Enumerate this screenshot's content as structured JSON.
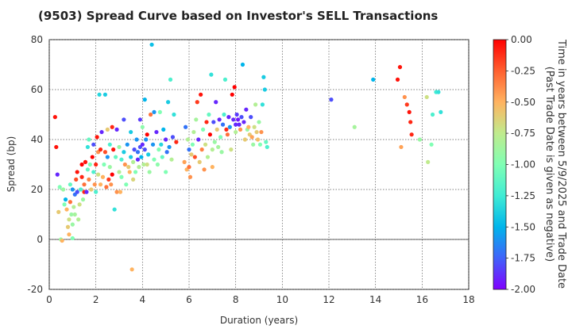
{
  "chart_data": {
    "type": "scatter",
    "title": "(9503)   Spread Curve based on Investor's SELL Transactions",
    "xlabel": "Duration (years)",
    "ylabel": "Spread (bp)",
    "xlim": [
      0,
      18
    ],
    "ylim": [
      -20,
      80
    ],
    "xticks": [
      "0",
      "2",
      "4",
      "6",
      "8",
      "10",
      "12",
      "14",
      "16",
      "18"
    ],
    "yticks": [
      "-20",
      "0",
      "20",
      "40",
      "60",
      "80"
    ],
    "grid": true,
    "colorbar": {
      "label_line1": "Time in years between 5/9/2025 and Trade Date",
      "label_line2": "(Past Trade Date is given as negative)",
      "range": [
        -2.0,
        0.0
      ],
      "ticks": [
        "0.00",
        "-0.25",
        "-0.50",
        "-0.75",
        "-1.00",
        "-1.25",
        "-1.50",
        "-1.75",
        "-2.00"
      ],
      "colormap": "rainbow"
    },
    "points": [
      [
        0.25,
        49,
        -0.05
      ],
      [
        0.3,
        37,
        -0.05
      ],
      [
        0.35,
        26,
        -1.9
      ],
      [
        0.4,
        11,
        -0.6
      ],
      [
        0.45,
        21,
        -1.0
      ],
      [
        0.5,
        0,
        -0.9
      ],
      [
        0.55,
        -0.5,
        -0.5
      ],
      [
        0.6,
        20,
        -0.9
      ],
      [
        0.65,
        14,
        -1.0
      ],
      [
        0.7,
        16,
        -1.5
      ],
      [
        0.75,
        12,
        -0.5
      ],
      [
        0.8,
        5,
        -0.6
      ],
      [
        0.85,
        8,
        -0.7
      ],
      [
        0.85,
        2,
        -0.5
      ],
      [
        0.9,
        22,
        -1.1
      ],
      [
        0.9,
        15,
        -0.3
      ],
      [
        0.95,
        10,
        -0.9
      ],
      [
        1.0,
        0.5,
        -1.0
      ],
      [
        1.0,
        6,
        -0.9
      ],
      [
        1.0,
        20,
        -1.6
      ],
      [
        1.05,
        13,
        -0.8
      ],
      [
        1.1,
        18,
        -1.7
      ],
      [
        1.1,
        10,
        -0.85
      ],
      [
        1.15,
        24,
        -0.2
      ],
      [
        1.2,
        19,
        -1.8
      ],
      [
        1.2,
        27,
        -0.05
      ],
      [
        1.25,
        8,
        -0.8
      ],
      [
        1.3,
        14,
        -0.7
      ],
      [
        1.35,
        20,
        -1.2
      ],
      [
        1.4,
        25,
        -0.1
      ],
      [
        1.4,
        30,
        -0.0
      ],
      [
        1.45,
        16,
        -0.9
      ],
      [
        1.5,
        22,
        -0.3
      ],
      [
        1.5,
        19,
        -0.1
      ],
      [
        1.55,
        31,
        -0.05
      ],
      [
        1.6,
        19,
        -1.9
      ],
      [
        1.65,
        28,
        -1.1
      ],
      [
        1.65,
        37,
        -1.3
      ],
      [
        1.7,
        24,
        -0.35
      ],
      [
        1.7,
        40,
        -1.1
      ],
      [
        1.75,
        30,
        -1.0
      ],
      [
        1.8,
        20,
        -0.6
      ],
      [
        1.85,
        33,
        -0.0
      ],
      [
        1.9,
        27,
        -1.2
      ],
      [
        1.9,
        38,
        -1.8
      ],
      [
        1.95,
        22,
        -0.4
      ],
      [
        2.0,
        19,
        -1.2
      ],
      [
        2.0,
        30,
        -0.1
      ],
      [
        2.05,
        41,
        -0.05
      ],
      [
        2.1,
        35,
        -0.4
      ],
      [
        2.1,
        26,
        -0.7
      ],
      [
        2.15,
        58,
        -1.35
      ],
      [
        2.2,
        22,
        -0.5
      ],
      [
        2.2,
        36,
        -0.1
      ],
      [
        2.25,
        43,
        -1.9
      ],
      [
        2.3,
        25,
        -0.5
      ],
      [
        2.35,
        30,
        -1.0
      ],
      [
        2.4,
        35,
        -0.2
      ],
      [
        2.4,
        58,
        -1.4
      ],
      [
        2.45,
        21,
        -0.3
      ],
      [
        2.5,
        33,
        -1.6
      ],
      [
        2.5,
        44,
        -0.6
      ],
      [
        2.55,
        24,
        -0.15
      ],
      [
        2.6,
        29,
        -0.9
      ],
      [
        2.6,
        38,
        -1.2
      ],
      [
        2.65,
        22,
        -0.4
      ],
      [
        2.7,
        26,
        -0.0
      ],
      [
        2.7,
        45,
        -0.1
      ],
      [
        2.75,
        36,
        -0.05
      ],
      [
        2.8,
        12,
        -1.3
      ],
      [
        2.85,
        33,
        -1.1
      ],
      [
        2.9,
        19,
        -0.4
      ],
      [
        2.9,
        44,
        -1.9
      ],
      [
        3.0,
        27,
        -0.8
      ],
      [
        3.0,
        37,
        -0.9
      ],
      [
        3.05,
        19,
        -0.5
      ],
      [
        3.1,
        32,
        -1.2
      ],
      [
        3.1,
        25,
        -1.0
      ],
      [
        3.2,
        35,
        -1.4
      ],
      [
        3.2,
        48,
        -1.8
      ],
      [
        3.25,
        30,
        -0.4
      ],
      [
        3.3,
        22,
        -1.0
      ],
      [
        3.35,
        38,
        -1.6
      ],
      [
        3.4,
        29,
        -0.6
      ],
      [
        3.45,
        27,
        -0.5
      ],
      [
        3.5,
        33,
        -1.4
      ],
      [
        3.5,
        43,
        -1.4
      ],
      [
        3.55,
        -12,
        -0.5
      ],
      [
        3.6,
        31,
        -0.8
      ],
      [
        3.6,
        24,
        -0.65
      ],
      [
        3.65,
        36,
        -1.8
      ],
      [
        3.7,
        27,
        -1.0
      ],
      [
        3.75,
        40,
        -1.6
      ],
      [
        3.8,
        32,
        -1.9
      ],
      [
        3.8,
        35,
        -1.7
      ],
      [
        3.85,
        29,
        -0.8
      ],
      [
        3.9,
        37,
        -1.8
      ],
      [
        3.9,
        48,
        -1.85
      ],
      [
        3.95,
        33,
        -1.5
      ],
      [
        4.0,
        38,
        -1.9
      ],
      [
        4.0,
        45,
        -0.95
      ],
      [
        4.05,
        30,
        -0.8
      ],
      [
        4.1,
        36,
        -1.8
      ],
      [
        4.1,
        56,
        -1.5
      ],
      [
        4.15,
        40,
        -1.6
      ],
      [
        4.2,
        42,
        -0.0
      ],
      [
        4.2,
        30,
        -0.7
      ],
      [
        4.25,
        34,
        -1.4
      ],
      [
        4.3,
        27,
        -0.9
      ],
      [
        4.35,
        50,
        -0.3
      ],
      [
        4.4,
        78,
        -1.45
      ],
      [
        4.45,
        38,
        -1.6
      ],
      [
        4.5,
        51,
        -1.6
      ],
      [
        4.5,
        32,
        -1.0
      ],
      [
        4.6,
        43,
        -1.9
      ],
      [
        4.65,
        30,
        -0.95
      ],
      [
        4.7,
        36,
        -1.0
      ],
      [
        4.75,
        51,
        -1.0
      ],
      [
        4.8,
        38,
        -1.35
      ],
      [
        4.85,
        33,
        -1.1
      ],
      [
        4.9,
        44,
        -1.5
      ],
      [
        5.0,
        27,
        -1.0
      ],
      [
        5.0,
        40,
        -1.9
      ],
      [
        5.05,
        35,
        -1.7
      ],
      [
        5.1,
        55,
        -1.4
      ],
      [
        5.15,
        37,
        -1.6
      ],
      [
        5.2,
        64,
        -1.2
      ],
      [
        5.25,
        32,
        -0.8
      ],
      [
        5.3,
        41,
        -1.8
      ],
      [
        5.35,
        50,
        -1.3
      ],
      [
        5.45,
        39,
        -0.1
      ],
      [
        5.8,
        31,
        -0.45
      ],
      [
        5.85,
        45,
        -1.7
      ],
      [
        5.9,
        28,
        -0.5
      ],
      [
        5.95,
        40,
        -0.8
      ],
      [
        6.0,
        36,
        -1.7
      ],
      [
        6.0,
        29,
        -0.3
      ],
      [
        6.05,
        25,
        -0.4
      ],
      [
        6.1,
        34,
        -0.6
      ],
      [
        6.15,
        38,
        -1.0
      ],
      [
        6.2,
        43,
        -0.8
      ],
      [
        6.25,
        33,
        -0.2
      ],
      [
        6.3,
        48,
        -0.85
      ],
      [
        6.35,
        55,
        -0.15
      ],
      [
        6.4,
        40,
        -1.9
      ],
      [
        6.45,
        31,
        -0.6
      ],
      [
        6.5,
        58,
        -0.05
      ],
      [
        6.55,
        36,
        -0.35
      ],
      [
        6.6,
        44,
        -1.0
      ],
      [
        6.65,
        28,
        -0.4
      ],
      [
        6.7,
        38,
        -0.7
      ],
      [
        6.75,
        47,
        -0.1
      ],
      [
        6.8,
        33,
        -0.8
      ],
      [
        6.85,
        50,
        -1.1
      ],
      [
        6.9,
        42,
        -0.0
      ],
      [
        6.95,
        66,
        -1.3
      ],
      [
        7.0,
        29,
        -0.5
      ],
      [
        7.0,
        36,
        -0.8
      ],
      [
        7.05,
        47,
        -1.8
      ],
      [
        7.1,
        39,
        -0.9
      ],
      [
        7.15,
        55,
        -1.9
      ],
      [
        7.2,
        44,
        -0.6
      ],
      [
        7.25,
        37,
        -0.85
      ],
      [
        7.3,
        48,
        -1.9
      ],
      [
        7.35,
        41,
        -1.0
      ],
      [
        7.4,
        35,
        -0.9
      ],
      [
        7.45,
        46,
        -1.7
      ],
      [
        7.5,
        50,
        -1.2
      ],
      [
        7.55,
        64,
        -1.2
      ],
      [
        7.6,
        44,
        -0.1
      ],
      [
        7.65,
        42,
        -0.3
      ],
      [
        7.7,
        49,
        -1.9
      ],
      [
        7.75,
        45,
        -1.6
      ],
      [
        7.8,
        36,
        -0.7
      ],
      [
        7.85,
        58,
        -0.0
      ],
      [
        7.9,
        48,
        -1.9
      ],
      [
        7.95,
        61,
        -0.0
      ],
      [
        8.0,
        46,
        -1.9
      ],
      [
        8.0,
        43,
        -0.8
      ],
      [
        8.05,
        50,
        -1.85
      ],
      [
        8.1,
        48,
        -1.95
      ],
      [
        8.15,
        46,
        -1.9
      ],
      [
        8.2,
        44,
        -0.4
      ],
      [
        8.25,
        49,
        -1.8
      ],
      [
        8.3,
        70,
        -1.5
      ],
      [
        8.35,
        47,
        -1.9
      ],
      [
        8.4,
        40,
        -0.6
      ],
      [
        8.45,
        52,
        -1.9
      ],
      [
        8.5,
        44,
        -0.9
      ],
      [
        8.55,
        45,
        -0.5
      ],
      [
        8.6,
        42,
        -0.6
      ],
      [
        8.65,
        49,
        -1.8
      ],
      [
        8.7,
        41,
        -0.45
      ],
      [
        8.75,
        38,
        -0.9
      ],
      [
        8.8,
        45,
        -0.7
      ],
      [
        8.85,
        54,
        -0.8
      ],
      [
        8.9,
        43,
        -0.6
      ],
      [
        8.95,
        40,
        -0.55
      ],
      [
        9.0,
        47,
        -0.9
      ],
      [
        9.05,
        38,
        -1.0
      ],
      [
        9.1,
        43,
        -0.4
      ],
      [
        9.15,
        54,
        -1.3
      ],
      [
        9.2,
        65,
        -1.4
      ],
      [
        9.25,
        60,
        -1.4
      ],
      [
        9.3,
        39,
        -1.1
      ],
      [
        9.35,
        37,
        -1.2
      ],
      [
        12.1,
        56,
        -1.8
      ],
      [
        13.1,
        45,
        -0.85
      ],
      [
        13.9,
        64,
        -1.5
      ],
      [
        14.95,
        64,
        -0.05
      ],
      [
        15.05,
        69,
        -0.05
      ],
      [
        15.1,
        37,
        -0.45
      ],
      [
        15.25,
        57,
        -0.4
      ],
      [
        15.35,
        54,
        -0.15
      ],
      [
        15.45,
        51,
        -0.05
      ],
      [
        15.5,
        47,
        -0.1
      ],
      [
        15.55,
        42,
        -0.1
      ],
      [
        15.9,
        40,
        -0.9
      ],
      [
        16.2,
        57,
        -0.7
      ],
      [
        16.25,
        31,
        -0.75
      ],
      [
        16.4,
        38,
        -1.0
      ],
      [
        16.45,
        50,
        -1.2
      ],
      [
        16.6,
        59,
        -1.25
      ],
      [
        16.7,
        59,
        -1.3
      ],
      [
        16.8,
        51,
        -1.3
      ]
    ]
  }
}
